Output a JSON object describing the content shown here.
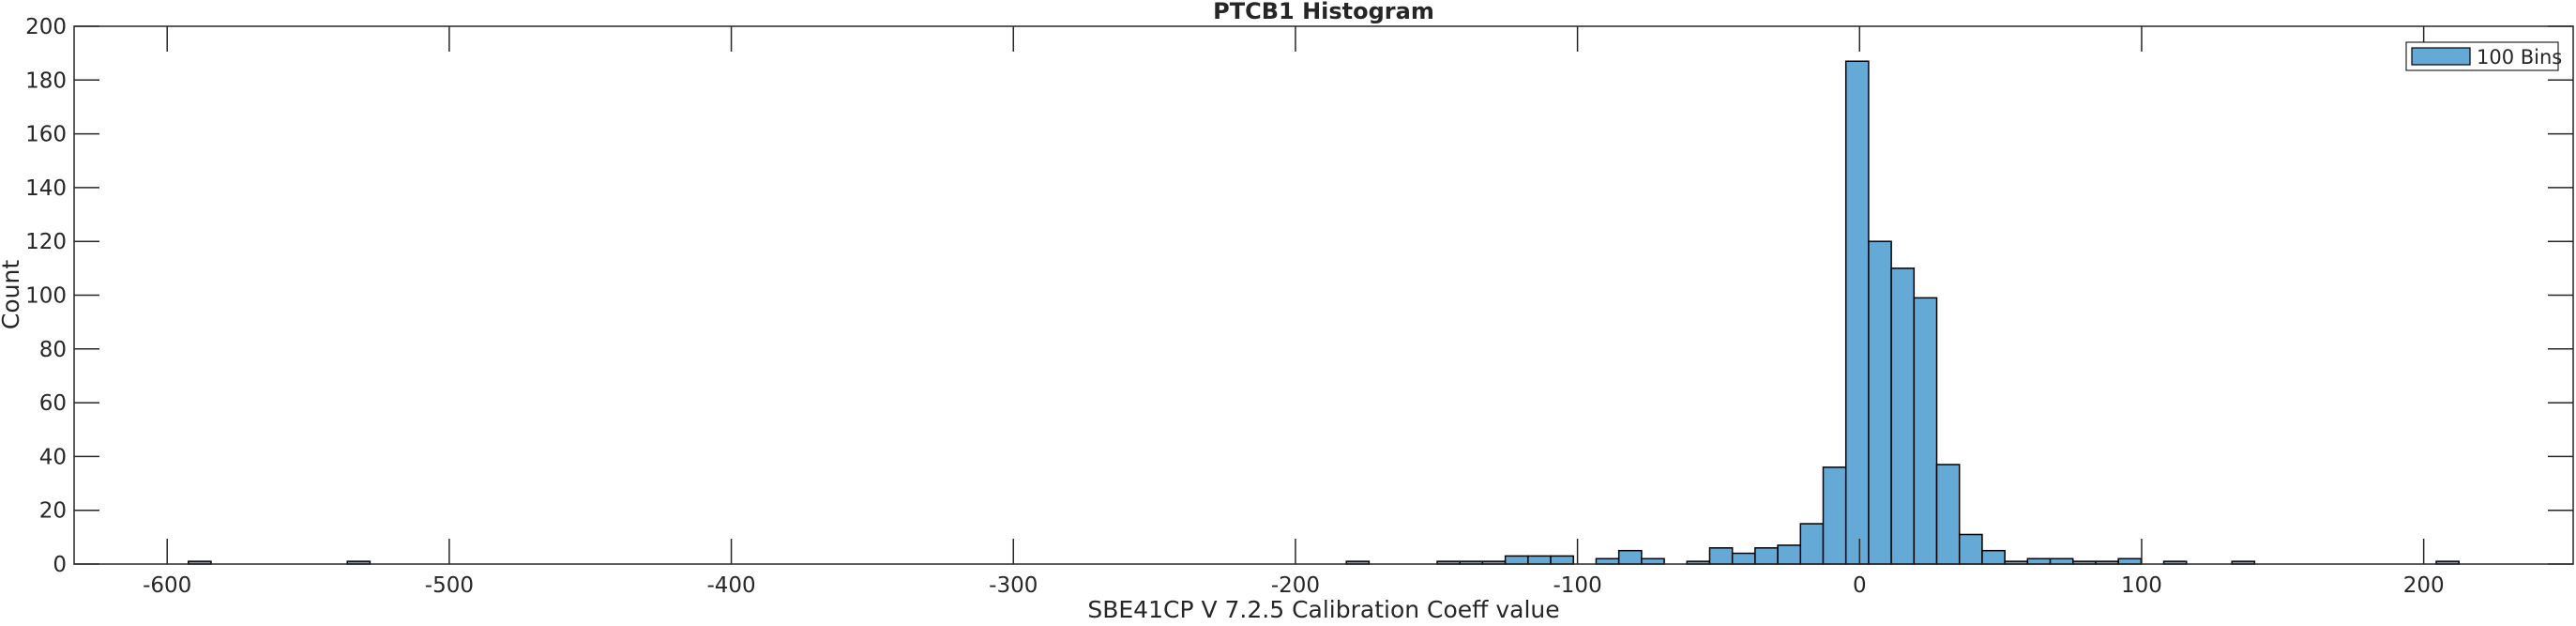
{
  "chart_data": {
    "type": "bar",
    "title": "PTCB1 Histogram",
    "xlabel": "SBE41CP V 7.2.5 Calibration Coeff value",
    "ylabel": "Count",
    "xlim": [
      -633,
      253
    ],
    "ylim": [
      0,
      200
    ],
    "xticks": [
      -600,
      -500,
      -400,
      -300,
      -200,
      -100,
      0,
      100,
      200
    ],
    "yticks": [
      0,
      20,
      40,
      60,
      80,
      100,
      120,
      140,
      160,
      180,
      200
    ],
    "grid": false,
    "legend": {
      "entries": [
        "100 Bins"
      ],
      "placement": "top-right"
    },
    "bin_start": -592.5,
    "bin_width": 8.05,
    "counts": [
      1,
      0,
      0,
      0,
      0,
      0,
      0,
      1,
      0,
      0,
      0,
      0,
      0,
      0,
      0,
      0,
      0,
      0,
      0,
      0,
      0,
      0,
      0,
      0,
      0,
      0,
      0,
      0,
      0,
      0,
      0,
      0,
      0,
      0,
      0,
      0,
      0,
      0,
      0,
      0,
      0,
      0,
      0,
      0,
      0,
      0,
      0,
      0,
      0,
      0,
      0,
      1,
      0,
      0,
      0,
      1,
      1,
      1,
      3,
      3,
      3,
      0,
      2,
      5,
      2,
      0,
      1,
      6,
      4,
      6,
      7,
      15,
      36,
      187,
      120,
      110,
      99,
      37,
      11,
      5,
      1,
      2,
      2,
      1,
      1,
      2,
      0,
      1,
      0,
      0,
      1,
      0,
      0,
      0,
      0,
      0,
      0,
      0,
      0,
      1
    ],
    "colors": {
      "bar": "#65a9d7",
      "edge": "#000000",
      "axis": "#262626"
    }
  }
}
